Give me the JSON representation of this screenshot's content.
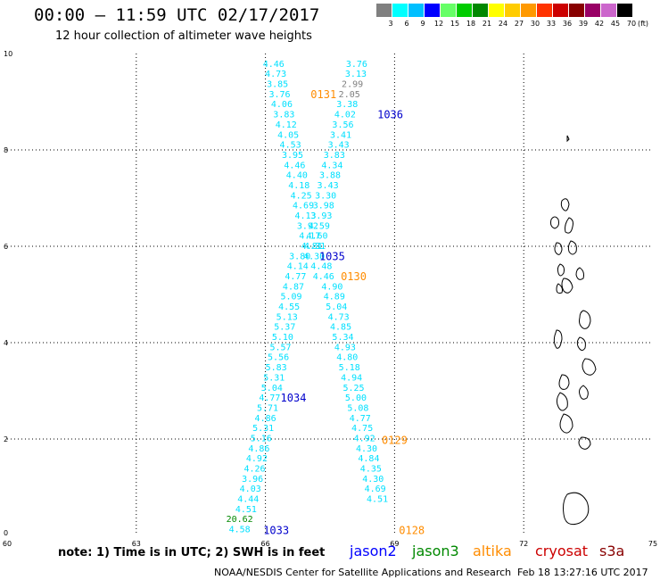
{
  "header": {
    "title": "00:00 – 11:59 UTC 02/17/2017",
    "subtitle": "12 hour collection of altimeter wave heights"
  },
  "color_scale": {
    "unit": "(ft)",
    "bins": [
      {
        "label": "3",
        "color": "#808080"
      },
      {
        "label": "6",
        "color": "#00ffff"
      },
      {
        "label": "9",
        "color": "#00bfff"
      },
      {
        "label": "12",
        "color": "#0000ff"
      },
      {
        "label": "15",
        "color": "#66ff66"
      },
      {
        "label": "18",
        "color": "#00cc00"
      },
      {
        "label": "21",
        "color": "#008800"
      },
      {
        "label": "24",
        "color": "#ffff00"
      },
      {
        "label": "27",
        "color": "#ffcc00"
      },
      {
        "label": "30",
        "color": "#ff9900"
      },
      {
        "label": "33",
        "color": "#ff3300"
      },
      {
        "label": "36",
        "color": "#cc0000"
      },
      {
        "label": "39",
        "color": "#880000"
      },
      {
        "label": "42",
        "color": "#990066"
      },
      {
        "label": "45",
        "color": "#cc66cc"
      },
      {
        "label": "70",
        "color": "#000000"
      }
    ]
  },
  "chart_data": {
    "type": "scatter",
    "title": "00:00 – 11:59 UTC 02/17/2017",
    "subtitle": "12 hour collection of altimeter wave heights",
    "xlabel": "",
    "ylabel": "",
    "xlim": [
      60,
      75
    ],
    "ylim": [
      0,
      10
    ],
    "x_ticks": [
      60,
      63,
      66,
      69,
      72,
      75
    ],
    "y_ticks": [
      0,
      2,
      4,
      6,
      8,
      10
    ],
    "grid": true,
    "series": [
      {
        "name": "jason2",
        "color": "#00e0ff",
        "points": [
          {
            "x": 66.19,
            "y": 9.78,
            "v": "4.46"
          },
          {
            "x": 66.24,
            "y": 9.57,
            "v": "4.73"
          },
          {
            "x": 66.28,
            "y": 9.36,
            "v": "3.85"
          },
          {
            "x": 66.33,
            "y": 9.15,
            "v": "3.76"
          },
          {
            "x": 66.38,
            "y": 8.94,
            "v": "4.06"
          },
          {
            "x": 66.43,
            "y": 8.73,
            "v": "3.83"
          },
          {
            "x": 66.48,
            "y": 8.52,
            "v": "4.12"
          },
          {
            "x": 66.53,
            "y": 8.31,
            "v": "4.05"
          },
          {
            "x": 66.58,
            "y": 8.1,
            "v": "4.53"
          },
          {
            "x": 66.63,
            "y": 7.89,
            "v": "3.95"
          },
          {
            "x": 66.68,
            "y": 7.68,
            "v": "4.46"
          },
          {
            "x": 66.73,
            "y": 7.47,
            "v": "4.40"
          },
          {
            "x": 66.78,
            "y": 7.26,
            "v": "4.18"
          },
          {
            "x": 66.83,
            "y": 7.05,
            "v": "4.25"
          },
          {
            "x": 66.88,
            "y": 6.84,
            "v": "4.69"
          },
          {
            "x": 66.93,
            "y": 6.63,
            "v": "4.13"
          },
          {
            "x": 66.98,
            "y": 6.42,
            "v": "3.92"
          },
          {
            "x": 67.03,
            "y": 6.21,
            "v": "4.17"
          },
          {
            "x": 67.08,
            "y": 6.0,
            "v": "4.81"
          },
          {
            "x": 66.8,
            "y": 5.79,
            "v": "3.80"
          },
          {
            "x": 66.75,
            "y": 5.58,
            "v": "4.14"
          },
          {
            "x": 66.7,
            "y": 5.37,
            "v": "4.77"
          },
          {
            "x": 66.65,
            "y": 5.16,
            "v": "4.87"
          },
          {
            "x": 66.6,
            "y": 4.95,
            "v": "5.09"
          },
          {
            "x": 66.55,
            "y": 4.74,
            "v": "4.55"
          },
          {
            "x": 66.5,
            "y": 4.53,
            "v": "5.13"
          },
          {
            "x": 66.45,
            "y": 4.32,
            "v": "5.37"
          },
          {
            "x": 66.4,
            "y": 4.11,
            "v": "5.10"
          },
          {
            "x": 66.35,
            "y": 3.9,
            "v": "5.57"
          },
          {
            "x": 66.3,
            "y": 3.69,
            "v": "5.56"
          },
          {
            "x": 66.25,
            "y": 3.48,
            "v": "5.83"
          },
          {
            "x": 66.2,
            "y": 3.27,
            "v": "5.31"
          },
          {
            "x": 66.15,
            "y": 3.06,
            "v": "5.04"
          },
          {
            "x": 66.1,
            "y": 2.85,
            "v": "4.77"
          },
          {
            "x": 66.05,
            "y": 2.64,
            "v": "5.71"
          },
          {
            "x": 66.0,
            "y": 2.43,
            "v": "4.86"
          },
          {
            "x": 65.95,
            "y": 2.22,
            "v": "5.31"
          },
          {
            "x": 65.9,
            "y": 2.01,
            "v": "5.16"
          },
          {
            "x": 65.85,
            "y": 1.8,
            "v": "4.86"
          },
          {
            "x": 65.8,
            "y": 1.59,
            "v": "4.92"
          },
          {
            "x": 65.75,
            "y": 1.38,
            "v": "4.26"
          },
          {
            "x": 65.7,
            "y": 1.17,
            "v": "3.96"
          },
          {
            "x": 65.65,
            "y": 0.96,
            "v": "4.03"
          },
          {
            "x": 65.6,
            "y": 0.75,
            "v": "4.44"
          },
          {
            "x": 65.55,
            "y": 0.54,
            "v": "4.51"
          },
          {
            "x": 65.4,
            "y": 0.33,
            "v": "20.62",
            "color": "#008800"
          },
          {
            "x": 65.4,
            "y": 0.12,
            "v": "4.58"
          }
        ]
      },
      {
        "name": "altika",
        "color": "#00e0ff",
        "points": [
          {
            "x": 68.12,
            "y": 9.78,
            "v": "3.76"
          },
          {
            "x": 68.1,
            "y": 9.57,
            "v": "3.13"
          },
          {
            "x": 68.02,
            "y": 9.36,
            "v": "2.99",
            "color": "#808080"
          },
          {
            "x": 67.95,
            "y": 9.15,
            "v": "2.05",
            "color": "#808080"
          },
          {
            "x": 67.9,
            "y": 8.94,
            "v": "3.38"
          },
          {
            "x": 67.85,
            "y": 8.73,
            "v": "4.02"
          },
          {
            "x": 67.8,
            "y": 8.52,
            "v": "3.56"
          },
          {
            "x": 67.75,
            "y": 8.31,
            "v": "3.41"
          },
          {
            "x": 67.7,
            "y": 8.1,
            "v": "3.43"
          },
          {
            "x": 67.6,
            "y": 7.89,
            "v": "3.83"
          },
          {
            "x": 67.55,
            "y": 7.68,
            "v": "4.34"
          },
          {
            "x": 67.5,
            "y": 7.47,
            "v": "3.88"
          },
          {
            "x": 67.45,
            "y": 7.26,
            "v": "3.43"
          },
          {
            "x": 67.4,
            "y": 7.05,
            "v": "3.30"
          },
          {
            "x": 67.35,
            "y": 6.84,
            "v": "3.98"
          },
          {
            "x": 67.3,
            "y": 6.63,
            "v": "3.93"
          },
          {
            "x": 67.25,
            "y": 6.42,
            "v": "4.59"
          },
          {
            "x": 67.2,
            "y": 6.21,
            "v": "4.60"
          },
          {
            "x": 67.15,
            "y": 6.0,
            "v": "4.31"
          },
          {
            "x": 67.13,
            "y": 5.79,
            "v": "4.30"
          },
          {
            "x": 67.3,
            "y": 5.58,
            "v": "4.48"
          },
          {
            "x": 67.35,
            "y": 5.37,
            "v": "4.46"
          },
          {
            "x": 67.55,
            "y": 5.16,
            "v": "4.90"
          },
          {
            "x": 67.6,
            "y": 4.95,
            "v": "4.89"
          },
          {
            "x": 67.65,
            "y": 4.74,
            "v": "5.04"
          },
          {
            "x": 67.7,
            "y": 4.53,
            "v": "4.73"
          },
          {
            "x": 67.75,
            "y": 4.32,
            "v": "4.85"
          },
          {
            "x": 67.8,
            "y": 4.11,
            "v": "5.34"
          },
          {
            "x": 67.85,
            "y": 3.9,
            "v": "4.93"
          },
          {
            "x": 67.9,
            "y": 3.69,
            "v": "4.80"
          },
          {
            "x": 67.95,
            "y": 3.48,
            "v": "5.18"
          },
          {
            "x": 68.0,
            "y": 3.27,
            "v": "4.94"
          },
          {
            "x": 68.05,
            "y": 3.06,
            "v": "5.25"
          },
          {
            "x": 68.1,
            "y": 2.85,
            "v": "5.00"
          },
          {
            "x": 68.15,
            "y": 2.64,
            "v": "5.08"
          },
          {
            "x": 68.2,
            "y": 2.43,
            "v": "4.77"
          },
          {
            "x": 68.25,
            "y": 2.22,
            "v": "4.75"
          },
          {
            "x": 68.3,
            "y": 2.01,
            "v": "4.92"
          },
          {
            "x": 68.35,
            "y": 1.8,
            "v": "4.30"
          },
          {
            "x": 68.4,
            "y": 1.59,
            "v": "4.84"
          },
          {
            "x": 68.45,
            "y": 1.38,
            "v": "4.35"
          },
          {
            "x": 68.5,
            "y": 1.17,
            "v": "4.30"
          },
          {
            "x": 68.55,
            "y": 0.96,
            "v": "4.69"
          },
          {
            "x": 68.6,
            "y": 0.75,
            "v": "4.51"
          }
        ]
      }
    ],
    "time_labels": [
      {
        "text": "0131",
        "x": 67.35,
        "y": 9.15,
        "color": "#ff8c00"
      },
      {
        "text": "1036",
        "x": 68.9,
        "y": 8.73,
        "color": "#0000cc"
      },
      {
        "text": "1035",
        "x": 67.55,
        "y": 5.79,
        "color": "#0000cc"
      },
      {
        "text": "0130",
        "x": 68.05,
        "y": 5.37,
        "color": "#ff8c00"
      },
      {
        "text": "1034",
        "x": 66.65,
        "y": 2.85,
        "color": "#0000cc"
      },
      {
        "text": "0129",
        "x": 69.0,
        "y": 1.97,
        "color": "#ff8c00"
      },
      {
        "text": "1033",
        "x": 66.25,
        "y": 0.1,
        "color": "#0000cc"
      },
      {
        "text": "0128",
        "x": 69.4,
        "y": 0.1,
        "color": "#ff8c00"
      }
    ]
  },
  "legend": {
    "note": "note: 1) Time is in UTC; 2) SWH is in feet",
    "missions": [
      {
        "name": "jason2",
        "color": "#0000ff"
      },
      {
        "name": "jason3",
        "color": "#008800"
      },
      {
        "name": "altika",
        "color": "#ff8c00"
      },
      {
        "name": "cryosat",
        "color": "#cc0000"
      },
      {
        "name": "s3a",
        "color": "#880000"
      }
    ]
  },
  "footer": {
    "credit": "NOAA/NESDIS Center for Satellite Applications and Research",
    "timestamp": "Feb 18 13:27:16 UTC 2017"
  }
}
